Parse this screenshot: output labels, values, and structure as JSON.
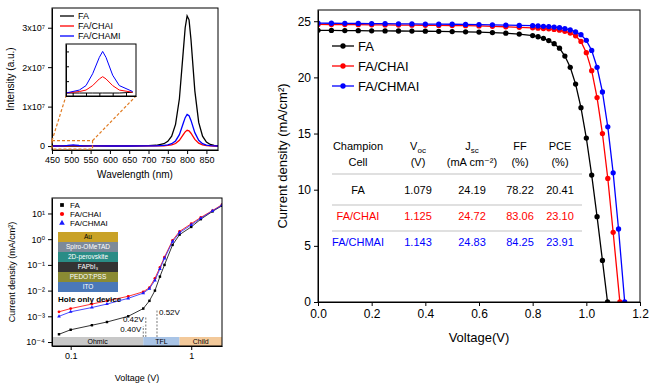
{
  "chart_data": [
    {
      "type": "line",
      "x_label": "Wavelength (nm)",
      "y_label": "Intensity (a.u.)",
      "x": [
        450,
        470,
        480,
        490,
        500,
        505,
        510,
        520,
        530,
        550,
        600,
        650,
        700,
        720,
        740,
        750,
        760,
        770,
        780,
        790,
        795,
        800,
        805,
        810,
        820,
        830,
        840,
        850,
        860,
        870,
        880
      ],
      "xlim": [
        450,
        880
      ],
      "xticks": [
        450,
        500,
        550,
        600,
        650,
        700,
        750,
        800,
        850
      ],
      "ylim": [
        -1000000,
        35000000
      ],
      "yticks": [
        0,
        {
          "value": 10000000,
          "label": "1x10⁷"
        },
        {
          "value": 20000000,
          "label": "2x10⁷"
        },
        {
          "value": 30000000,
          "label": "3x10⁷"
        }
      ],
      "legend": "upper left",
      "series": [
        {
          "name": "FA",
          "color": "#000000",
          "line_style": "solid",
          "values": [
            20000,
            20000,
            20000,
            20000,
            20000,
            20000,
            20000,
            20000,
            20000,
            25000,
            30000,
            40000,
            100000,
            200000,
            600000,
            1200000,
            2500000,
            5500000,
            12000000,
            24000000,
            30000000,
            33000000,
            32000000,
            27000000,
            14000000,
            6000000,
            2500000,
            1000000,
            400000,
            150000,
            60000
          ]
        },
        {
          "name": "FA/CHAI",
          "color": "#ff0000",
          "line_style": "solid",
          "values": [
            20000,
            30000,
            40000,
            70000,
            115000,
            130000,
            115000,
            70000,
            40000,
            25000,
            20000,
            20000,
            25000,
            40000,
            75000,
            150000,
            300000,
            650000,
            1450000,
            2900000,
            3600000,
            4000000,
            3850000,
            3250000,
            1700000,
            720000,
            300000,
            120000,
            50000,
            20000,
            8000
          ]
        },
        {
          "name": "FA/CHAMI",
          "color": "#0000ff",
          "line_style": "solid",
          "values": [
            20000,
            40000,
            70000,
            150000,
            260000,
            300000,
            260000,
            140000,
            70000,
            30000,
            20000,
            20000,
            30000,
            60000,
            150000,
            300000,
            600000,
            1300000,
            2900000,
            5800000,
            7200000,
            8000000,
            7700000,
            6500000,
            3400000,
            1450000,
            600000,
            240000,
            100000,
            40000,
            15000
          ]
        }
      ]
    },
    {
      "type": "line",
      "tick_labels": false,
      "x": [
        450,
        470,
        480,
        490,
        500,
        505,
        510,
        520,
        530,
        550
      ],
      "xlim": [
        450,
        555
      ],
      "xticks": [
        460,
        480,
        500,
        520,
        540
      ],
      "ylim": [
        0,
        350000
      ],
      "yticks": [
        0,
        100000,
        200000,
        300000
      ],
      "series": [
        {
          "color": "#000000",
          "line_style": "solid",
          "values": [
            20000,
            20000,
            20000,
            20000,
            20000,
            20000,
            20000,
            20000,
            20000,
            25000
          ]
        },
        {
          "color": "#ff0000",
          "line_style": "solid",
          "values": [
            20000,
            30000,
            40000,
            70000,
            115000,
            130000,
            115000,
            70000,
            40000,
            25000
          ]
        },
        {
          "color": "#0000ff",
          "line_style": "solid",
          "values": [
            20000,
            40000,
            70000,
            150000,
            260000,
            300000,
            260000,
            140000,
            70000,
            30000
          ]
        }
      ]
    },
    {
      "type": "line",
      "log": true,
      "x_label": "Voltage (V)",
      "y_label": "Current density (mA/cm²)",
      "xlim": [
        0.07,
        1.8
      ],
      "xticks": [
        0.1,
        1
      ],
      "ylim": [
        7e-05,
        40
      ],
      "yticks": [
        {
          "value": 0.0001,
          "label": "10⁻⁴"
        },
        {
          "value": 0.001,
          "label": "10⁻³"
        },
        {
          "value": 0.01,
          "label": "10⁻²"
        },
        {
          "value": 0.1,
          "label": "10⁻¹"
        },
        {
          "value": 1,
          "label": "10⁰"
        },
        {
          "value": 10,
          "label": "10¹"
        }
      ],
      "legend": "upper left",
      "series": [
        {
          "name": "FA",
          "color": "#000000",
          "marker": "square",
          "line_style": "solid",
          "x": [
            0.08,
            0.1,
            0.15,
            0.2,
            0.3,
            0.4,
            0.45,
            0.5,
            0.55,
            0.6,
            0.7,
            0.8,
            1.0,
            1.2,
            1.5,
            1.8
          ],
          "values": [
            0.0002,
            0.0003,
            0.00045,
            0.0006,
            0.001,
            0.002,
            0.004,
            0.01,
            0.035,
            0.1,
            0.6,
            1.5,
            3,
            6,
            12,
            20
          ]
        },
        {
          "name": "FA/CHAI",
          "color": "#ff0000",
          "marker": "circle",
          "line_style": "solid",
          "x": [
            0.08,
            0.1,
            0.15,
            0.2,
            0.3,
            0.4,
            0.45,
            0.5,
            0.55,
            0.6,
            0.7,
            0.8,
            1.0,
            1.2,
            1.5,
            1.8
          ],
          "values": [
            0.0015,
            0.002,
            0.003,
            0.004,
            0.006,
            0.009,
            0.013,
            0.03,
            0.08,
            0.2,
            0.9,
            2,
            4,
            7,
            13,
            22
          ]
        },
        {
          "name": "FA/CHMAI",
          "color": "#1a1aff",
          "marker": "triangle",
          "line_style": "solid",
          "x": [
            0.08,
            0.1,
            0.15,
            0.2,
            0.3,
            0.4,
            0.45,
            0.5,
            0.55,
            0.6,
            0.7,
            0.8,
            1.0,
            1.2,
            1.5,
            1.8
          ],
          "values": [
            0.001,
            0.0015,
            0.0022,
            0.003,
            0.005,
            0.008,
            0.012,
            0.025,
            0.07,
            0.18,
            0.8,
            1.8,
            3.6,
            6.5,
            12.5,
            21
          ]
        }
      ],
      "annotations": [
        {
          "label": "0.40V",
          "value": 0.4
        },
        {
          "label": "0.42V",
          "value": 0.42
        },
        {
          "label": "0.52V",
          "value": 0.52
        }
      ],
      "regions": [
        {
          "label": "Ohmic",
          "from": 0.07,
          "to": 0.4
        },
        {
          "label": "TFL",
          "from": 0.4,
          "to": 0.8
        },
        {
          "label": "Child",
          "from": 0.8,
          "to": 1.8
        }
      ],
      "device": {
        "title": "Hole only device",
        "layers": [
          "Au",
          "Spiro-OMeTAD",
          "2D-perovskite",
          "FAPbI₃",
          "PEDOT:PSS",
          "ITO"
        ]
      }
    },
    {
      "type": "line",
      "x_label": "Voltage(V)",
      "y_label": "Current density (mA/cm²)",
      "xlim": [
        0,
        1.2
      ],
      "xticks": [
        {
          "value": 0,
          "label": "0.0"
        },
        0.2,
        0.4,
        0.6,
        0.8,
        {
          "value": 1,
          "label": "1.0"
        },
        1.2
      ],
      "ylim": [
        0,
        26
      ],
      "yticks": [
        0,
        5,
        10,
        15,
        20,
        25
      ],
      "legend": "upper left",
      "series": [
        {
          "name": "FA",
          "color": "#000000",
          "marker": "circle",
          "line_style": "solid",
          "x": [
            0,
            0.05,
            0.1,
            0.15,
            0.2,
            0.25,
            0.3,
            0.35,
            0.4,
            0.45,
            0.5,
            0.55,
            0.6,
            0.65,
            0.7,
            0.75,
            0.8,
            0.82,
            0.84,
            0.86,
            0.88,
            0.9,
            0.92,
            0.94,
            0.96,
            0.98,
            1.0,
            1.02,
            1.04,
            1.06,
            1.079
          ],
          "values": [
            24.19,
            24.18,
            24.17,
            24.16,
            24.15,
            24.14,
            24.13,
            24.12,
            24.11,
            24.1,
            24.08,
            24.06,
            24.03,
            23.99,
            23.94,
            23.86,
            23.72,
            23.62,
            23.48,
            23.28,
            23.0,
            22.6,
            21.9,
            20.9,
            19.4,
            17.3,
            14.6,
            11.3,
            7.6,
            3.7,
            0
          ]
        },
        {
          "name": "FA/CHAI",
          "color": "#ff0000",
          "marker": "circle",
          "line_style": "solid",
          "x": [
            0,
            0.05,
            0.1,
            0.15,
            0.2,
            0.25,
            0.3,
            0.35,
            0.4,
            0.45,
            0.5,
            0.55,
            0.6,
            0.65,
            0.7,
            0.75,
            0.8,
            0.82,
            0.84,
            0.86,
            0.88,
            0.9,
            0.92,
            0.94,
            0.96,
            0.98,
            1.0,
            1.02,
            1.04,
            1.06,
            1.08,
            1.1,
            1.125
          ],
          "values": [
            24.72,
            24.71,
            24.7,
            24.69,
            24.68,
            24.67,
            24.66,
            24.65,
            24.64,
            24.63,
            24.62,
            24.6,
            24.58,
            24.55,
            24.51,
            24.46,
            24.41,
            24.38,
            24.35,
            24.32,
            24.27,
            24.2,
            24.1,
            23.95,
            23.7,
            23.2,
            22.2,
            20.6,
            18.2,
            15.0,
            11.0,
            6.2,
            0
          ]
        },
        {
          "name": "FA/CHMAI",
          "color": "#0000ff",
          "marker": "circle",
          "line_style": "solid",
          "x": [
            0,
            0.05,
            0.1,
            0.15,
            0.2,
            0.25,
            0.3,
            0.35,
            0.4,
            0.45,
            0.5,
            0.55,
            0.6,
            0.65,
            0.7,
            0.75,
            0.8,
            0.82,
            0.84,
            0.86,
            0.88,
            0.9,
            0.92,
            0.94,
            0.96,
            0.98,
            1.0,
            1.02,
            1.04,
            1.06,
            1.08,
            1.1,
            1.12,
            1.143
          ],
          "values": [
            24.83,
            24.82,
            24.81,
            24.8,
            24.79,
            24.78,
            24.77,
            24.76,
            24.75,
            24.74,
            24.73,
            24.72,
            24.7,
            24.68,
            24.66,
            24.63,
            24.6,
            24.58,
            24.55,
            24.52,
            24.48,
            24.42,
            24.34,
            24.22,
            24.05,
            23.8,
            23.3,
            22.4,
            20.9,
            18.7,
            15.6,
            11.5,
            6.5,
            0
          ]
        }
      ],
      "table": {
        "columns": [
          {
            "text": "Champion",
            "line2": "Cell"
          },
          {
            "text": "V",
            "sub": "oc",
            "line2": "(V)"
          },
          {
            "text": "J",
            "sub": "sc",
            "line2": "(mA cm⁻²)"
          },
          {
            "text": "FF",
            "line2": "(%)"
          },
          {
            "text": "PCE",
            "line2": "(%)"
          }
        ],
        "rows": [
          [
            "FA",
            "1.079",
            "24.19",
            "78.22",
            "20.41"
          ],
          [
            "FA/CHAI",
            "1.125",
            "24.72",
            "83.06",
            "23.10"
          ],
          [
            "FA/CHMAI",
            "1.143",
            "24.83",
            "84.25",
            "23.91"
          ]
        ]
      }
    }
  ]
}
